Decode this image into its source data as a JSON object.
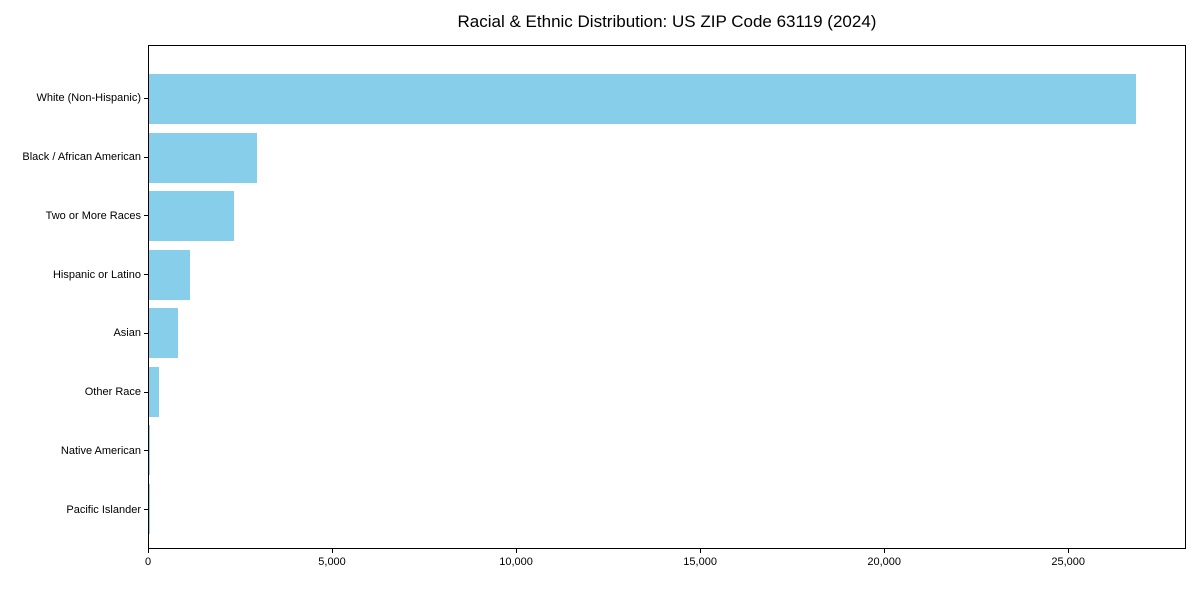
{
  "chart_data": {
    "type": "bar",
    "orientation": "horizontal",
    "title": "Racial & Ethnic Distribution: US ZIP Code 63119 (2024)",
    "categories": [
      "White (Non-Hispanic)",
      "Black / African American",
      "Two or More Races",
      "Hispanic or Latino",
      "Asian",
      "Other Race",
      "Native American",
      "Pacific Islander"
    ],
    "values": [
      26875,
      2935,
      2310,
      1115,
      790,
      270,
      40,
      15
    ],
    "xlabel": "",
    "ylabel": "",
    "xlim": [
      0,
      28200
    ],
    "xticks": [
      0,
      5000,
      10000,
      15000,
      20000,
      25000
    ],
    "xtick_labels": [
      "0",
      "5,000",
      "10,000",
      "15,000",
      "20,000",
      "25,000"
    ],
    "bar_color": "#87CEEB",
    "axis_color": "#000000",
    "text_color": "#000000",
    "background_color": "#ffffff",
    "grid": false,
    "legend": null
  }
}
